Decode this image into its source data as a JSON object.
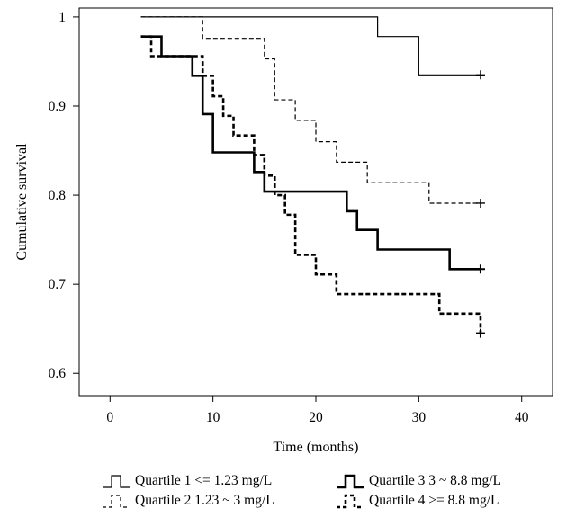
{
  "chart_data": {
    "type": "line",
    "title": "",
    "xlabel": "Time (months)",
    "ylabel": "Cumulative survival",
    "xlim": [
      -3,
      43
    ],
    "ylim": [
      0.575,
      1.01
    ],
    "xticks": [
      0,
      10,
      20,
      30,
      40
    ],
    "yticks": [
      0.6,
      0.7,
      0.8,
      0.9,
      1
    ],
    "ytick_labels": [
      "0.6",
      "0.7",
      "0.8",
      "0.9",
      "1"
    ],
    "grid": false,
    "legend_position": "bottom",
    "series": [
      {
        "name": "Quartile 1 <= 1.23 mg/L",
        "style": "solid-thin",
        "x": [
          3,
          26,
          30,
          36
        ],
        "y": [
          1.0,
          0.978,
          0.935,
          0.935
        ],
        "censor": [
          [
            36,
            0.935
          ]
        ]
      },
      {
        "name": "Quartile 2 1.23 ~ 3 mg/L",
        "style": "dashed-thin",
        "x": [
          3,
          9,
          15,
          16,
          18,
          20,
          22,
          25,
          26,
          31,
          36
        ],
        "y": [
          1.0,
          0.976,
          0.953,
          0.907,
          0.884,
          0.86,
          0.837,
          0.814,
          0.814,
          0.791,
          0.791
        ],
        "censor": [
          [
            36,
            0.791
          ]
        ]
      },
      {
        "name": "Quartile 3 3 ~ 8.8 mg/L",
        "style": "solid-thick",
        "x": [
          3,
          5,
          8,
          9,
          10,
          14,
          15,
          23,
          24,
          26,
          33,
          36
        ],
        "y": [
          0.978,
          0.956,
          0.934,
          0.891,
          0.848,
          0.826,
          0.804,
          0.782,
          0.761,
          0.739,
          0.717,
          0.717
        ],
        "censor": [
          [
            36,
            0.717
          ]
        ]
      },
      {
        "name": "Quartile 4 >= 8.8 mg/L",
        "style": "dashed-thick",
        "x": [
          3,
          4,
          9,
          10,
          11,
          12,
          14,
          15,
          16,
          17,
          18,
          20,
          22,
          32,
          36
        ],
        "y": [
          0.978,
          0.956,
          0.934,
          0.911,
          0.889,
          0.867,
          0.845,
          0.822,
          0.8,
          0.778,
          0.733,
          0.711,
          0.689,
          0.667,
          0.645
        ],
        "censor": [
          [
            36,
            0.645
          ]
        ]
      }
    ]
  },
  "legend": {
    "items": [
      {
        "label": "Quartile 1  <= 1.23 mg/L"
      },
      {
        "label": "Quartile 2  1.23 ~ 3 mg/L"
      },
      {
        "label": "Quartile 3  3 ~ 8.8 mg/L"
      },
      {
        "label": "Quartile 4  >= 8.8 mg/L"
      }
    ]
  }
}
